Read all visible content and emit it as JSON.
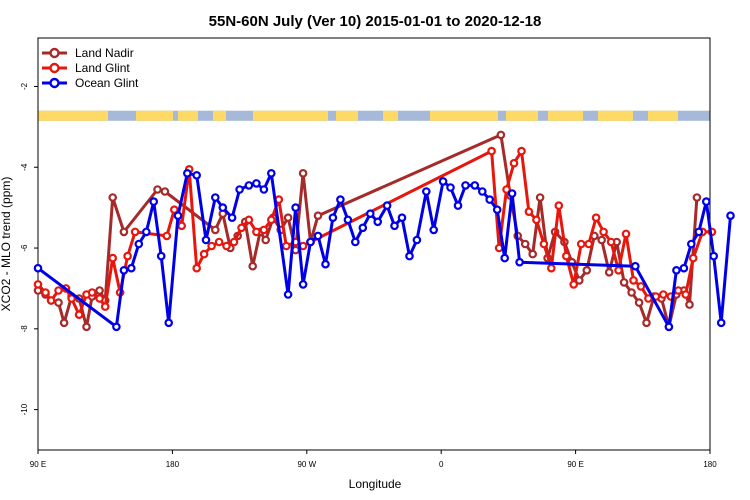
{
  "chart_data": {
    "type": "line",
    "title": "55N-60N July (Ver 10)   2015-01-01 to 2020-12-18",
    "xlabel": "Longitude",
    "ylabel": "XCO2 - MLO trend (ppm)",
    "xlim": [
      90,
      450
    ],
    "ylim": [
      -11,
      -0.8
    ],
    "x_ticks": [
      {
        "value": 90,
        "label": "90 E"
      },
      {
        "value": 180,
        "label": "180"
      },
      {
        "value": 270,
        "label": "90 W"
      },
      {
        "value": 360,
        "label": "0"
      },
      {
        "value": 450,
        "label": "90 E"
      },
      {
        "value": 540,
        "label": "180"
      }
    ],
    "y_ticks": [
      {
        "value": -2,
        "label": "-2"
      },
      {
        "value": -4,
        "label": "-4"
      },
      {
        "value": -6,
        "label": "-6"
      },
      {
        "value": -8,
        "label": "-8"
      },
      {
        "value": -10,
        "label": "-10"
      }
    ],
    "x_axis_max_display": 540,
    "legend_position": "top-left",
    "land_mask_band": {
      "y_top": -2.6,
      "y_bottom": -2.85,
      "land_color": "#ffd966",
      "ocean_color": "#a6b9d8"
    },
    "series": [
      {
        "name": "Land Nadir",
        "color": "#a52a2a",
        "points": [
          [
            90,
            -7.05
          ],
          [
            94,
            -7.15
          ],
          [
            97,
            -7.3
          ],
          [
            101,
            -7.35
          ],
          [
            104,
            -7.85
          ],
          [
            108,
            -7.2
          ],
          [
            112,
            -7.25
          ],
          [
            116,
            -7.95
          ],
          [
            119,
            -7.2
          ],
          [
            123,
            -7.05
          ],
          [
            126,
            -7.3
          ],
          [
            130,
            -4.75
          ],
          [
            136,
            -5.6
          ],
          [
            154,
            -4.55
          ],
          [
            158,
            -4.6
          ],
          [
            185,
            -5.55
          ],
          [
            189,
            -5.15
          ],
          [
            193,
            -6.0
          ],
          [
            197,
            -5.7
          ],
          [
            201,
            -5.35
          ],
          [
            205,
            -6.45
          ],
          [
            209,
            -5.6
          ],
          [
            212,
            -5.8
          ],
          [
            216,
            -5.25
          ],
          [
            220,
            -5.55
          ],
          [
            224,
            -5.25
          ],
          [
            228,
            -6.05
          ],
          [
            232,
            -4.15
          ],
          [
            236,
            -5.85
          ],
          [
            240,
            -5.2
          ],
          [
            338,
            -3.2
          ],
          [
            343,
            -4.7
          ],
          [
            347,
            -5.7
          ],
          [
            351,
            -5.9
          ],
          [
            355,
            -6.15
          ],
          [
            359,
            -4.75
          ],
          [
            363,
            -6.25
          ],
          [
            367,
            -5.6
          ],
          [
            372,
            -5.85
          ],
          [
            376,
            -6.35
          ],
          [
            380,
            -6.8
          ],
          [
            384,
            -6.55
          ],
          [
            388,
            -5.7
          ],
          [
            392,
            -5.8
          ],
          [
            396,
            -6.6
          ],
          [
            400,
            -5.85
          ],
          [
            404,
            -6.85
          ],
          [
            408,
            -7.1
          ],
          [
            412,
            -7.35
          ],
          [
            416,
            -7.85
          ],
          [
            420,
            -7.2
          ],
          [
            424,
            -7.25
          ],
          [
            428,
            -7.95
          ],
          [
            432,
            -7.15
          ],
          [
            436,
            -7.05
          ],
          [
            439,
            -7.4
          ],
          [
            443,
            -4.75
          ]
        ]
      },
      {
        "name": "Land Glint",
        "color": "#e8170d",
        "points": [
          [
            90,
            -6.9
          ],
          [
            94,
            -7.1
          ],
          [
            97,
            -7.3
          ],
          [
            101,
            -7.05
          ],
          [
            105,
            -7.0
          ],
          [
            108,
            -7.25
          ],
          [
            112,
            -7.65
          ],
          [
            116,
            -7.15
          ],
          [
            119,
            -7.1
          ],
          [
            123,
            -7.25
          ],
          [
            126,
            -7.45
          ],
          [
            130,
            -6.25
          ],
          [
            134,
            -7.1
          ],
          [
            138,
            -6.2
          ],
          [
            142,
            -5.6
          ],
          [
            159,
            -5.7
          ],
          [
            163,
            -5.05
          ],
          [
            167,
            -5.45
          ],
          [
            171,
            -4.05
          ],
          [
            175,
            -6.5
          ],
          [
            179,
            -6.15
          ],
          [
            183,
            -5.95
          ],
          [
            187,
            -5.85
          ],
          [
            191,
            -5.95
          ],
          [
            195,
            -5.85
          ],
          [
            199,
            -5.5
          ],
          [
            203,
            -5.3
          ],
          [
            207,
            -5.6
          ],
          [
            211,
            -5.55
          ],
          [
            215,
            -5.3
          ],
          [
            219,
            -4.8
          ],
          [
            223,
            -5.95
          ],
          [
            228,
            -5.85
          ],
          [
            232,
            -5.95
          ],
          [
            236,
            -5.85
          ],
          [
            333,
            -3.6
          ],
          [
            337,
            -6.0
          ],
          [
            341,
            -4.55
          ],
          [
            345,
            -3.9
          ],
          [
            349,
            -3.6
          ],
          [
            353,
            -5.1
          ],
          [
            357,
            -5.3
          ],
          [
            361,
            -5.9
          ],
          [
            365,
            -6.5
          ],
          [
            369,
            -4.95
          ],
          [
            373,
            -6.2
          ],
          [
            377,
            -6.9
          ],
          [
            381,
            -5.9
          ],
          [
            385,
            -5.9
          ],
          [
            389,
            -5.25
          ],
          [
            393,
            -5.6
          ],
          [
            397,
            -5.85
          ],
          [
            401,
            -6.55
          ],
          [
            405,
            -5.65
          ],
          [
            409,
            -6.8
          ],
          [
            413,
            -6.95
          ],
          [
            417,
            -7.25
          ],
          [
            421,
            -7.2
          ],
          [
            425,
            -7.15
          ],
          [
            429,
            -7.2
          ],
          [
            433,
            -7.05
          ],
          [
            437,
            -7.15
          ],
          [
            441,
            -6.25
          ],
          [
            446,
            -5.6
          ],
          [
            451,
            -5.6
          ]
        ]
      },
      {
        "name": "Ocean Glint",
        "color": "#0000e8",
        "points": [
          [
            90,
            -6.5
          ],
          [
            132,
            -7.95
          ],
          [
            136,
            -6.55
          ],
          [
            140,
            -6.5
          ],
          [
            144,
            -5.9
          ],
          [
            148,
            -5.6
          ],
          [
            152,
            -4.85
          ],
          [
            156,
            -6.2
          ],
          [
            160,
            -7.85
          ],
          [
            165,
            -5.2
          ],
          [
            170,
            -4.15
          ],
          [
            175,
            -4.2
          ],
          [
            180,
            -5.8
          ],
          [
            185,
            -4.75
          ],
          [
            189,
            -5.0
          ],
          [
            194,
            -5.25
          ],
          [
            198,
            -4.55
          ],
          [
            203,
            -4.45
          ],
          [
            207,
            -4.4
          ],
          [
            211,
            -4.55
          ],
          [
            215,
            -4.15
          ],
          [
            224,
            -7.15
          ],
          [
            228,
            -5.0
          ],
          [
            232,
            -6.9
          ],
          [
            236,
            -5.85
          ],
          [
            240,
            -5.7
          ],
          [
            244,
            -6.4
          ],
          [
            248,
            -5.25
          ],
          [
            252,
            -4.8
          ],
          [
            256,
            -5.3
          ],
          [
            260,
            -5.85
          ],
          [
            264,
            -5.5
          ],
          [
            268,
            -5.15
          ],
          [
            272,
            -5.35
          ],
          [
            277,
            -4.95
          ],
          [
            281,
            -5.45
          ],
          [
            285,
            -5.25
          ],
          [
            289,
            -6.2
          ],
          [
            293,
            -5.8
          ],
          [
            298,
            -4.6
          ],
          [
            302,
            -5.55
          ],
          [
            307,
            -4.35
          ],
          [
            311,
            -4.5
          ],
          [
            315,
            -4.95
          ],
          [
            319,
            -4.45
          ],
          [
            324,
            -4.45
          ],
          [
            328,
            -4.6
          ],
          [
            332,
            -4.8
          ],
          [
            336,
            -5.05
          ],
          [
            340,
            -6.25
          ],
          [
            344,
            -4.65
          ],
          [
            348,
            -6.35
          ],
          [
            410,
            -6.45
          ],
          [
            428,
            -7.95
          ],
          [
            432,
            -6.55
          ],
          [
            436,
            -6.5
          ],
          [
            440,
            -5.9
          ],
          [
            444,
            -5.6
          ],
          [
            448,
            -4.85
          ],
          [
            452,
            -6.2
          ],
          [
            456,
            -7.85
          ],
          [
            461,
            -5.2
          ]
        ]
      }
    ]
  }
}
